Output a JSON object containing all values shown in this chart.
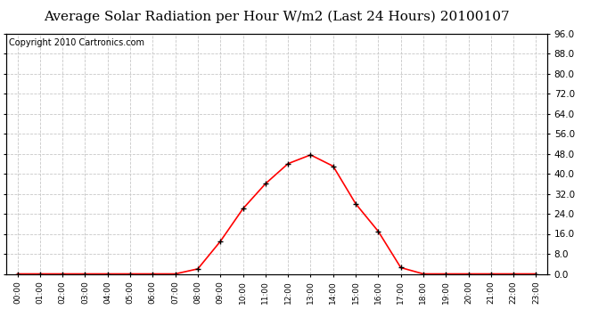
{
  "title": "Average Solar Radiation per Hour W/m2 (Last 24 Hours) 20100107",
  "copyright": "Copyright 2010 Cartronics.com",
  "hours": [
    "00:00",
    "01:00",
    "02:00",
    "03:00",
    "04:00",
    "05:00",
    "06:00",
    "07:00",
    "08:00",
    "09:00",
    "10:00",
    "11:00",
    "12:00",
    "13:00",
    "14:00",
    "15:00",
    "16:00",
    "17:00",
    "18:00",
    "19:00",
    "20:00",
    "21:00",
    "22:00",
    "23:00"
  ],
  "values": [
    0.0,
    0.0,
    0.0,
    0.0,
    0.0,
    0.0,
    0.0,
    0.0,
    2.0,
    13.0,
    26.0,
    36.0,
    44.0,
    47.5,
    43.0,
    28.0,
    17.0,
    2.5,
    0.0,
    0.0,
    0.0,
    0.0,
    0.0,
    0.0
  ],
  "ylim": [
    0.0,
    96.0
  ],
  "yticks": [
    0.0,
    8.0,
    16.0,
    24.0,
    32.0,
    40.0,
    48.0,
    56.0,
    64.0,
    72.0,
    80.0,
    88.0,
    96.0
  ],
  "line_color": "#ff0000",
  "marker_color": "#000000",
  "bg_color": "#ffffff",
  "plot_bg_color": "#ffffff",
  "grid_color": "#c8c8c8",
  "title_fontsize": 11,
  "copyright_fontsize": 7
}
